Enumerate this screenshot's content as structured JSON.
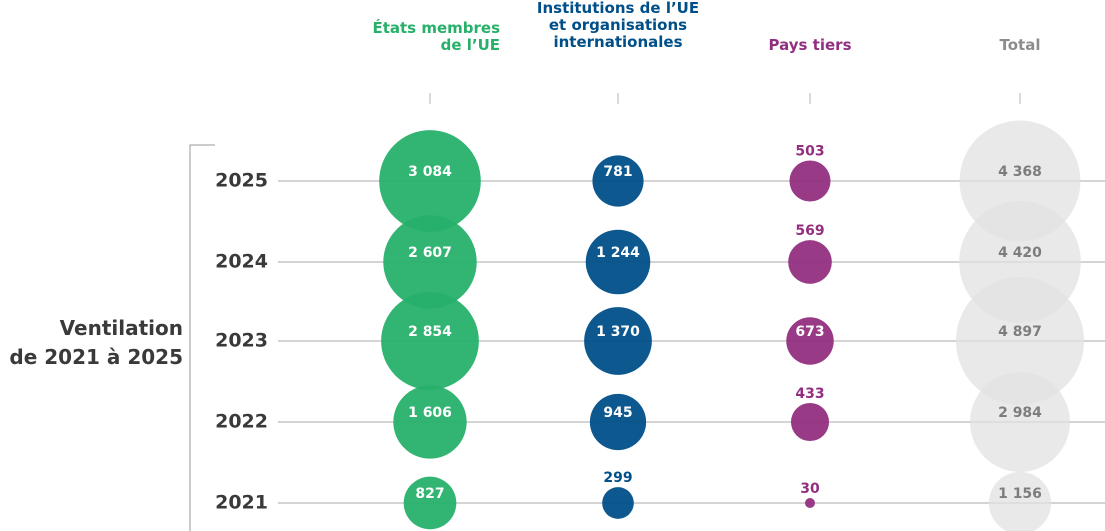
{
  "chart_data": {
    "type": "bubble",
    "y_axis_label": [
      "Ventilation",
      "de 2021 à 2025"
    ],
    "categories": [
      "2025",
      "2024",
      "2023",
      "2022",
      "2021"
    ],
    "series": [
      {
        "name": "États membres de l’UE",
        "color": "#27b06a",
        "values": [
          3084,
          2607,
          2854,
          1606,
          827
        ],
        "value_labels": [
          "3 084",
          "2 607",
          "2 854",
          "1 606",
          "827"
        ]
      },
      {
        "name": "Institutions de l’UE et organisations internationales",
        "color": "#004f88",
        "values": [
          781,
          1244,
          1370,
          945,
          299
        ],
        "value_labels": [
          "781",
          "1 244",
          "1 370",
          "945",
          "299"
        ]
      },
      {
        "name": "Pays tiers",
        "color": "#922f80",
        "values": [
          503,
          569,
          673,
          433,
          30
        ],
        "value_labels": [
          "503",
          "569",
          "673",
          "433",
          "30"
        ]
      },
      {
        "name": "Total",
        "color": "#e1e1e3",
        "values": [
          4368,
          4420,
          4897,
          2984,
          1156
        ],
        "value_labels": [
          "4 368",
          "4 420",
          "4 897",
          "2 984",
          "1 156"
        ]
      }
    ]
  }
}
